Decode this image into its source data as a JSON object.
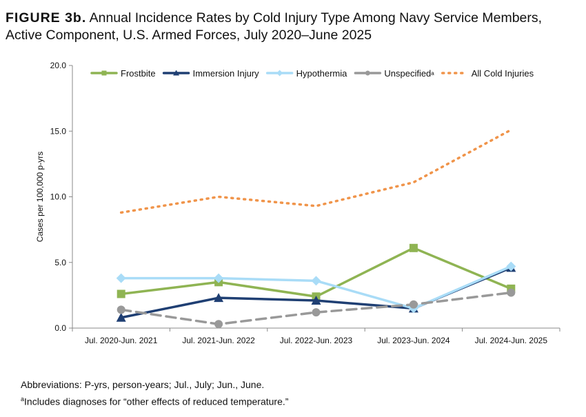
{
  "figure_label": "FIGURE 3b.",
  "title": "Annual Incidence Rates by Cold Injury Type Among Navy Service Members, Active Component, U.S. Armed Forces, July 2020–June 2025",
  "footnotes": {
    "abbreviations": "Abbreviations: P-yrs, person-years; Jul., July; Jun., June.",
    "a_marker": "a",
    "a_text": "Includes diagnoses for “other effects of reduced temperature.”"
  },
  "chart_data": {
    "type": "line",
    "ylabel": "Cases per 100,000 p-yrs",
    "xlabel": "",
    "ylim": [
      0,
      20
    ],
    "yticks": [
      "0.0",
      "5.0",
      "10.0",
      "15.0",
      "20.0"
    ],
    "grid": false,
    "legend": "top",
    "categories": [
      "Jul. 2020-Jun. 2021",
      "Jul. 2021-Jun. 2022",
      "Jul. 2022-Jun. 2023",
      "Jul. 2023-Jun. 2024",
      "Jul. 2024-Jun. 2025"
    ],
    "series": [
      {
        "name": "Frostbite",
        "color": "#8fb453",
        "marker": "square",
        "dash": "solid",
        "values": [
          2.6,
          3.5,
          2.4,
          6.1,
          3.0
        ]
      },
      {
        "name": "Immersion Injury",
        "color": "#1f3f73",
        "marker": "triangle",
        "dash": "solid",
        "values": [
          0.8,
          2.3,
          2.1,
          1.5,
          4.6
        ]
      },
      {
        "name": "Hypothermia",
        "color": "#a9dcf7",
        "marker": "diamond",
        "dash": "solid",
        "values": [
          3.8,
          3.8,
          3.6,
          1.5,
          4.7
        ]
      },
      {
        "name": "Unspecified",
        "superscript": "a",
        "color": "#999999",
        "marker": "circle",
        "dash": "dashed",
        "values": [
          1.4,
          0.3,
          1.2,
          1.8,
          2.7
        ]
      },
      {
        "name": "All Cold Injuries",
        "color": "#f0944a",
        "marker": "none",
        "dash": "dotted",
        "values": [
          8.8,
          10.0,
          9.3,
          11.1,
          15.1
        ]
      }
    ]
  }
}
